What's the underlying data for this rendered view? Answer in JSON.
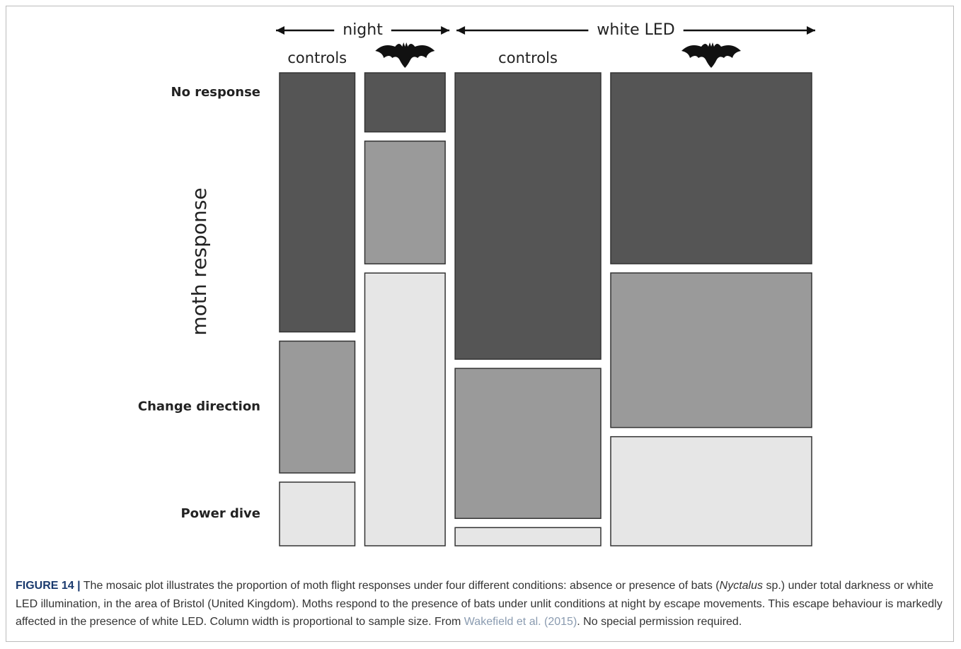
{
  "chart_data": {
    "type": "mosaic",
    "y_label": "moth response",
    "groups": [
      "night",
      "white LED"
    ],
    "categories": [
      "controls",
      null,
      "controls",
      null
    ],
    "column_widths": [
      15,
      16,
      29,
      40
    ],
    "series": [
      {
        "name": "No response",
        "color": "#555555",
        "values": [
          57,
          13,
          63,
          42
        ]
      },
      {
        "name": "Change direction",
        "color": "#9a9a9a",
        "values": [
          29,
          27,
          33,
          34
        ]
      },
      {
        "name": "Power dive",
        "color": "#e6e6e6",
        "values": [
          14,
          60,
          4,
          24
        ]
      }
    ]
  },
  "caption": {
    "label": "FIGURE 14 |",
    "text_before": " The mosaic plot illustrates the proportion of moth flight responses under four different conditions: absence or presence of bats (",
    "italic": "Nyctalus",
    "text_middle": " sp.) under total darkness or white LED illumination, in the area of Bristol (United Kingdom). Moths respond to the presence of bats under unlit conditions at night by escape movements. This escape behaviour is markedly affected in the presence of white LED. Column width is proportional to sample size. From ",
    "link": "Wakefield et al. (2015)",
    "text_end": ". No special permission required."
  }
}
